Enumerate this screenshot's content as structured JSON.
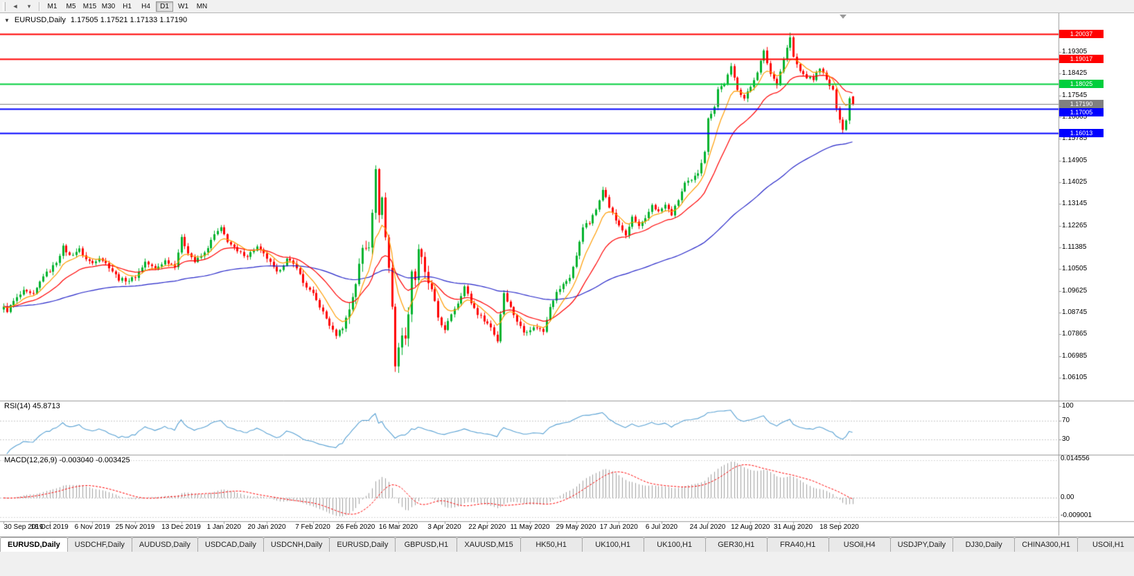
{
  "colors": {
    "bull": "#00b22d",
    "bear": "#ff0000",
    "ma_fast": "#ff9c00",
    "ma_mid": "#ff0000",
    "ma_slow": "#2222c8",
    "price_line": "#808080",
    "rsi_line": "#56a0d3",
    "macd_hist": "#a0a0a0",
    "macd_signal": "#ff0000",
    "grid_dash": "#c8c8c8",
    "separator": "#9a9a9a"
  },
  "toolbar": {
    "icons": [
      {
        "name": "scroll-left-icon",
        "glyph": "◄"
      },
      {
        "name": "dropdown-arrow-icon",
        "glyph": "▾"
      }
    ],
    "timeframes": [
      "M1",
      "M5",
      "M15",
      "M30",
      "H1",
      "H4",
      "D1",
      "W1",
      "MN"
    ],
    "active": "D1"
  },
  "chart": {
    "dropdown_glyph": "▼",
    "symbol": "EURUSD,Daily",
    "ohlc": "1.17505 1.17521 1.17133 1.17190",
    "price_scale": [
      "1.19305",
      "1.18425",
      "1.17545",
      "1.16665",
      "1.15785",
      "1.14905",
      "1.14025",
      "1.13145",
      "1.12265",
      "1.11385",
      "1.10505",
      "1.09625",
      "1.08745",
      "1.07865",
      "1.06985",
      "1.06105"
    ],
    "hlines": [
      {
        "price": 1.20037,
        "label": "1.20037",
        "color": "#ff0000"
      },
      {
        "price": 1.19017,
        "label": "1.19017",
        "color": "#ff0000"
      },
      {
        "price": 1.18025,
        "label": "1.18025",
        "color": "#00ce3c"
      },
      {
        "price": 1.17005,
        "label": "1.17005",
        "color": "#0000ff"
      },
      {
        "price": 1.16013,
        "label": "1.16013",
        "color": "#0000ff"
      }
    ],
    "price_line": {
      "price": 1.1719,
      "label": "1.17190",
      "color": "#808080"
    },
    "dates": [
      {
        "bar": 0,
        "label": "30 Sep 2019"
      },
      {
        "bar": 14,
        "label": "18 Oct 2019"
      },
      {
        "bar": 27,
        "label": "6 Nov 2019"
      },
      {
        "bar": 40,
        "label": "25 Nov 2019"
      },
      {
        "bar": 54,
        "label": "13 Dec 2019"
      },
      {
        "bar": 67,
        "label": "1 Jan 2020"
      },
      {
        "bar": 80,
        "label": "20 Jan 2020"
      },
      {
        "bar": 94,
        "label": "7 Feb 2020"
      },
      {
        "bar": 107,
        "label": "26 Feb 2020"
      },
      {
        "bar": 120,
        "label": "16 Mar 2020"
      },
      {
        "bar": 134,
        "label": "3 Apr 2020"
      },
      {
        "bar": 147,
        "label": "22 Apr 2020"
      },
      {
        "bar": 160,
        "label": "11 May 2020"
      },
      {
        "bar": 174,
        "label": "29 May 2020"
      },
      {
        "bar": 187,
        "label": "17 Jun 2020"
      },
      {
        "bar": 200,
        "label": "6 Jul 2020"
      },
      {
        "bar": 214,
        "label": "24 Jul 2020"
      },
      {
        "bar": 227,
        "label": "12 Aug 2020"
      },
      {
        "bar": 240,
        "label": "31 Aug 2020"
      },
      {
        "bar": 254,
        "label": "18 Sep 2020"
      }
    ]
  },
  "rsi_panel": {
    "label": "RSI(14) 45.8713",
    "scale": [
      "100",
      "70",
      "30"
    ],
    "levels": [
      70,
      30
    ]
  },
  "macd_panel": {
    "label": "MACD(12,26,9) -0.003040 -0.003425",
    "scale_top": "0.014556",
    "scale_zero": "0.00",
    "scale_bottom": "-0.009001"
  },
  "tabs": {
    "items": [
      "EURUSD,Daily",
      "USDCHF,Daily",
      "AUDUSD,Daily",
      "USDCAD,Daily",
      "USDCNH,Daily",
      "EURUSD,Daily",
      "GBPUSD,H1",
      "XAUUSD,M15",
      "HK50,H1",
      "UK100,H1",
      "UK100,H1",
      "GER30,H1",
      "FRA40,H1",
      "USOil,H4",
      "USDJPY,Daily",
      "DJ30,Daily",
      "CHINA300,H1",
      "USOil,H1"
    ],
    "active_index": 0
  },
  "chart_data": {
    "type": "candlestick",
    "symbol": "EURUSD",
    "timeframe": "Daily",
    "bars": 259,
    "last_candle": {
      "open": 1.17505,
      "high": 1.17521,
      "low": 1.17133,
      "close": 1.1719
    },
    "price_range_top": 1.20681,
    "price_range_bottom": 1.05234,
    "indicators": {
      "rsi_period": 14,
      "rsi_value": 45.8713,
      "macd_params": [
        12,
        26,
        9
      ],
      "macd_value": -0.00304,
      "macd_signal_value": -0.003425,
      "moving_averages": [
        {
          "period": 8,
          "color": "#ff9c00"
        },
        {
          "period": 21,
          "color": "#ff0000"
        },
        {
          "period": 90,
          "color": "#2222c8"
        }
      ]
    },
    "price_anchors": [
      [
        0,
        1.0895
      ],
      [
        1,
        1.0882
      ],
      [
        3,
        1.092
      ],
      [
        6,
        1.096
      ],
      [
        9,
        1.0945
      ],
      [
        12,
        1.1025
      ],
      [
        14,
        1.1045
      ],
      [
        16,
        1.108
      ],
      [
        18,
        1.114
      ],
      [
        20,
        1.1105
      ],
      [
        23,
        1.113
      ],
      [
        25,
        1.109
      ],
      [
        27,
        1.1075
      ],
      [
        29,
        1.11
      ],
      [
        32,
        1.106
      ],
      [
        35,
        1.101
      ],
      [
        38,
        1.1005
      ],
      [
        40,
        1.102
      ],
      [
        43,
        1.108
      ],
      [
        46,
        1.105
      ],
      [
        49,
        1.1085
      ],
      [
        52,
        1.1065
      ],
      [
        54,
        1.1175
      ],
      [
        56,
        1.112
      ],
      [
        58,
        1.108
      ],
      [
        61,
        1.1115
      ],
      [
        64,
        1.119
      ],
      [
        66,
        1.1215
      ],
      [
        68,
        1.1165
      ],
      [
        71,
        1.112
      ],
      [
        74,
        1.1105
      ],
      [
        77,
        1.114
      ],
      [
        80,
        1.1095
      ],
      [
        83,
        1.1035
      ],
      [
        86,
        1.109
      ],
      [
        89,
        1.106
      ],
      [
        91,
        1.0995
      ],
      [
        94,
        1.0948
      ],
      [
        97,
        1.0875
      ],
      [
        100,
        1.08
      ],
      [
        101,
        1.0785
      ],
      [
        103,
        1.0815
      ],
      [
        105,
        1.089
      ],
      [
        107,
        1.0995
      ],
      [
        109,
        1.1135
      ],
      [
        111,
        1.115
      ],
      [
        112,
        1.129
      ],
      [
        113,
        1.1445
      ],
      [
        114,
        1.128
      ],
      [
        115,
        1.134
      ],
      [
        116,
        1.118
      ],
      [
        117,
        1.1055
      ],
      [
        118,
        1.0905
      ],
      [
        119,
        1.066
      ],
      [
        120,
        1.0725
      ],
      [
        121,
        1.0795
      ],
      [
        122,
        1.076
      ],
      [
        123,
        1.088
      ],
      [
        124,
        1.1045
      ],
      [
        125,
        1.101
      ],
      [
        126,
        1.1135
      ],
      [
        127,
        1.109
      ],
      [
        128,
        1.103
      ],
      [
        130,
        1.096
      ],
      [
        132,
        1.0855
      ],
      [
        134,
        1.08
      ],
      [
        136,
        1.087
      ],
      [
        138,
        1.0915
      ],
      [
        140,
        1.098
      ],
      [
        142,
        1.0915
      ],
      [
        144,
        1.087
      ],
      [
        146,
        1.0845
      ],
      [
        148,
        1.0815
      ],
      [
        150,
        1.076
      ],
      [
        151,
        1.087
      ],
      [
        152,
        1.0955
      ],
      [
        154,
        1.0895
      ],
      [
        156,
        1.084
      ],
      [
        158,
        1.0795
      ],
      [
        160,
        1.0808
      ],
      [
        162,
        1.0815
      ],
      [
        164,
        1.0798
      ],
      [
        166,
        1.0902
      ],
      [
        168,
        1.0955
      ],
      [
        170,
        1.0988
      ],
      [
        172,
        1.1018
      ],
      [
        174,
        1.1102
      ],
      [
        176,
        1.1225
      ],
      [
        178,
        1.1238
      ],
      [
        180,
        1.1292
      ],
      [
        182,
        1.1378
      ],
      [
        184,
        1.1302
      ],
      [
        186,
        1.1248
      ],
      [
        188,
        1.121
      ],
      [
        189,
        1.1182
      ],
      [
        191,
        1.1262
      ],
      [
        193,
        1.1222
      ],
      [
        195,
        1.1252
      ],
      [
        197,
        1.1312
      ],
      [
        199,
        1.1282
      ],
      [
        201,
        1.131
      ],
      [
        203,
        1.1272
      ],
      [
        205,
        1.1332
      ],
      [
        207,
        1.1398
      ],
      [
        209,
        1.1408
      ],
      [
        211,
        1.1442
      ],
      [
        213,
        1.153
      ],
      [
        214,
        1.1658
      ],
      [
        216,
        1.1712
      ],
      [
        217,
        1.178
      ],
      [
        219,
        1.1802
      ],
      [
        221,
        1.1868
      ],
      [
        223,
        1.1782
      ],
      [
        225,
        1.1742
      ],
      [
        227,
        1.179
      ],
      [
        229,
        1.1852
      ],
      [
        231,
        1.1932
      ],
      [
        233,
        1.1842
      ],
      [
        235,
        1.1802
      ],
      [
        237,
        1.1902
      ],
      [
        239,
        1.199
      ],
      [
        240,
        1.1908
      ],
      [
        242,
        1.1852
      ],
      [
        244,
        1.1828
      ],
      [
        246,
        1.182
      ],
      [
        248,
        1.1868
      ],
      [
        250,
        1.1816
      ],
      [
        252,
        1.1772
      ],
      [
        253,
        1.1708
      ],
      [
        254,
        1.1662
      ],
      [
        255,
        1.1616
      ],
      [
        256,
        1.1652
      ],
      [
        257,
        1.1748
      ],
      [
        258,
        1.1719
      ]
    ]
  }
}
